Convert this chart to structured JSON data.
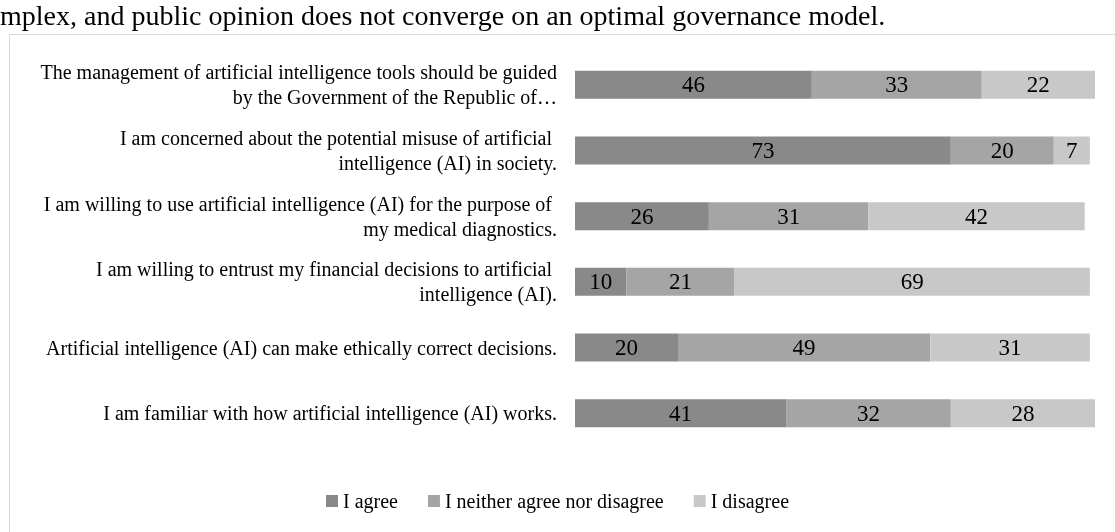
{
  "chart_data": {
    "type": "bar",
    "orientation": "horizontal",
    "stacked": true,
    "data_labels": true,
    "legend": "bottom",
    "annotations": [
      "mplex, and public opinion does not converge on an optimal governance model."
    ],
    "categories": [
      "The management of artificial intelligence tools should be guided by the Government of the Republic of…",
      "I am concerned about the potential misuse of artificial intelligence (AI) in society.",
      "I am willing to use artificial intelligence (AI) for the purpose of my medical diagnostics.",
      "I am willing to entrust my financial decisions to artificial intelligence (AI).",
      "Artificial intelligence (AI) can make ethically correct decisions.",
      "I am familiar with how artificial intelligence (AI) works."
    ],
    "series": [
      {
        "name": "I agree",
        "color": "#898989",
        "values": [
          46,
          73,
          26,
          10,
          20,
          41
        ]
      },
      {
        "name": "I neither agree nor disagree",
        "color": "#a5a5a5",
        "values": [
          33,
          20,
          31,
          21,
          49,
          32
        ]
      },
      {
        "name": "I disagree",
        "color": "#c8c8c8",
        "values": [
          22,
          7,
          42,
          69,
          31,
          28
        ]
      }
    ]
  }
}
